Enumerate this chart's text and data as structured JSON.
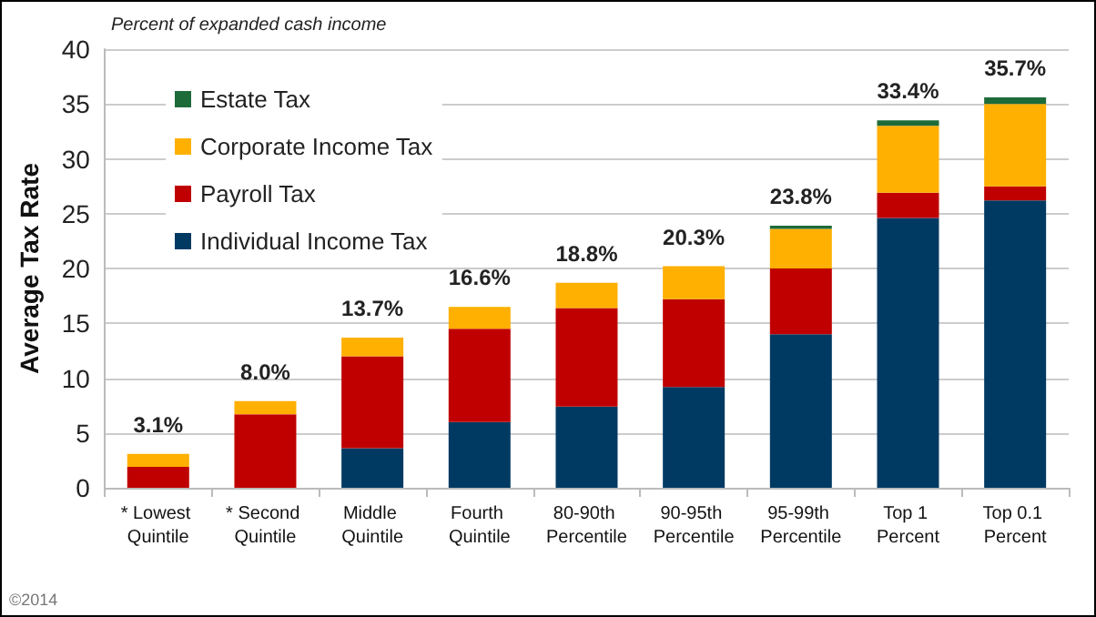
{
  "chart_data": {
    "type": "bar",
    "stacked": true,
    "subtitle": "Percent of expanded cash income",
    "ylabel": "Average Tax Rate",
    "categories": [
      "* Lowest Quintile",
      "* Second Quintile",
      "Middle Quintile",
      "Fourth Quintile",
      "80-90th Percentile",
      "90-95th Percentile",
      "95-99th Percentile",
      "Top 1 Percent",
      "Top 0.1 Percent"
    ],
    "series": [
      {
        "name": "Individual Income Tax",
        "color": "#003a63",
        "values": [
          null,
          null,
          3.6,
          6.0,
          7.4,
          9.2,
          14.0,
          24.6,
          26.2
        ]
      },
      {
        "name": "Payroll Tax",
        "color": "#c00000",
        "values": [
          1.9,
          6.7,
          8.4,
          8.5,
          9.0,
          8.0,
          6.0,
          2.3,
          1.3
        ]
      },
      {
        "name": "Corporate Income Tax",
        "color": "#ffb000",
        "values": [
          1.2,
          1.2,
          1.7,
          2.0,
          2.3,
          3.0,
          3.6,
          6.1,
          7.5
        ]
      },
      {
        "name": "Estate Tax",
        "color": "#1e6b3a",
        "values": [
          null,
          null,
          null,
          null,
          null,
          null,
          0.3,
          0.5,
          0.6
        ]
      }
    ],
    "totals": [
      "3.1%",
      "8.0%",
      "13.7%",
      "16.6%",
      "18.8%",
      "20.3%",
      "23.8%",
      "33.4%",
      "35.7%"
    ],
    "ylim": [
      0,
      40
    ],
    "yticks": [
      0,
      5,
      10,
      15,
      20,
      25,
      30,
      35,
      40
    ],
    "grid": "y",
    "legend": "top left",
    "annotations": [
      "©2014"
    ]
  }
}
